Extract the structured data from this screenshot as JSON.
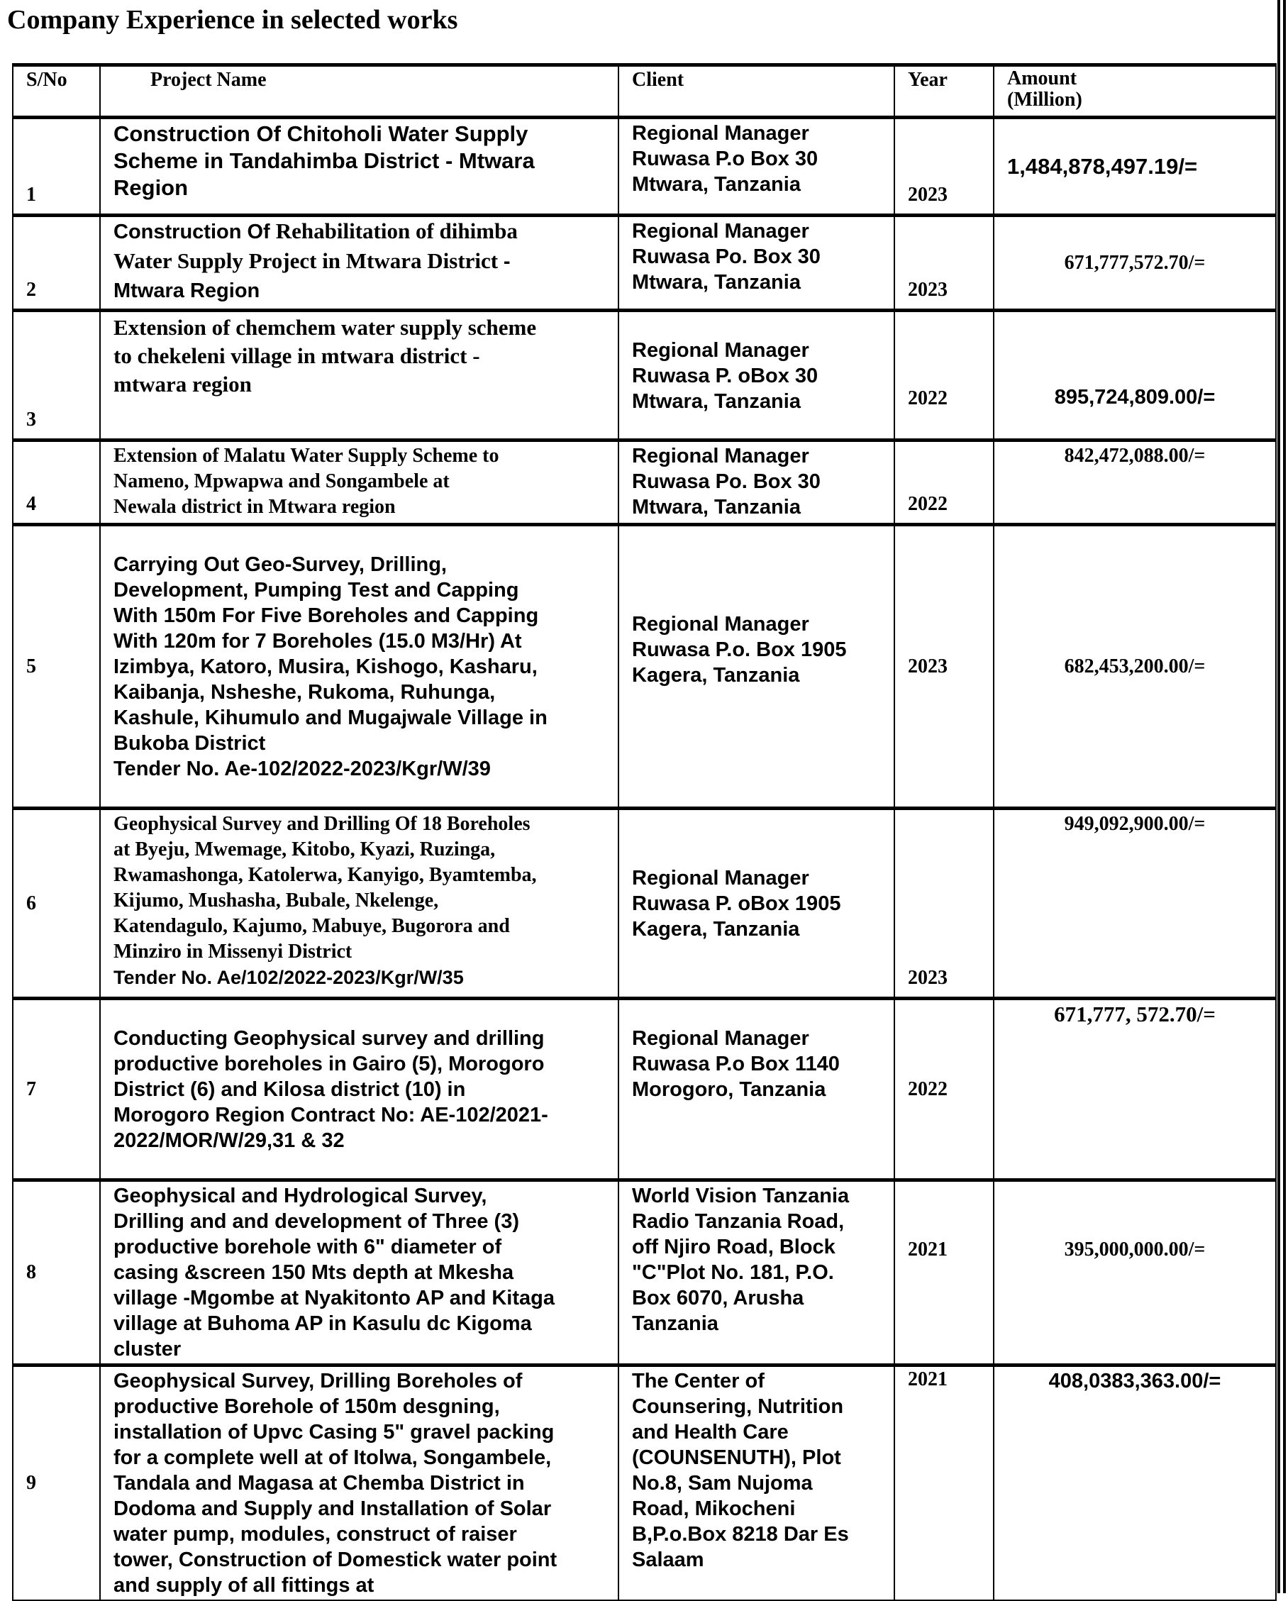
{
  "title": "Company Experience in selected works",
  "headers": {
    "sno": "S/No",
    "project": "Project Name",
    "client": "Client",
    "year": "Year",
    "amount": "Amount\n(Million)"
  },
  "rows": [
    {
      "sno": "1",
      "project": "Construction Of Chitoholi Water Supply\nScheme in Tandahimba District - Mtwara\nRegion",
      "client": "Regional Manager\nRuwasa P.o Box 30\nMtwara, Tanzania",
      "year": "2023",
      "amount": "1,484,878,497.19/="
    },
    {
      "sno": "2",
      "project_a": "Construction Of ",
      "project_b": "Rehabilitation of dihimba\nWater Supply Project in Mtwara District ",
      "project_c": "-\nMtwara Region",
      "client": "Regional Manager\nRuwasa Po. Box 30\nMtwara, Tanzania",
      "year": "2023",
      "amount": "671,777,572.70/="
    },
    {
      "sno": "3",
      "project": "Extension of chemchem water supply scheme\nto chekeleni village in mtwara district -\nmtwara region",
      "client": "Regional Manager\nRuwasa P. oBox 30\nMtwara, Tanzania",
      "year": "2022",
      "amount": "895,724,809.00/="
    },
    {
      "sno": "4",
      "project": "Extension of   Malatu Water Supply Scheme to\nNameno, Mpwapwa and Songambele at\nNewala district in Mtwara region",
      "client": "Regional Manager\nRuwasa Po. Box 30\nMtwara, Tanzania",
      "year": "2022",
      "amount": "842,472,088.00/="
    },
    {
      "sno": "5",
      "project": "Carrying Out Geo-Survey, Drilling,\nDevelopment, Pumping Test and Capping\nWith 150m For Five Boreholes and Capping\nWith 120m for 7 Boreholes (15.0 M3/Hr) At\nIzimbya, Katoro, Musira, Kishogo, Kasharu,\nKaibanja, Nsheshe, Rukoma, Ruhunga,\nKashule, Kihumulo and Mugajwale Village in\nBukoba District\nTender No. Ae-102/2022-2023/Kgr/W/39",
      "client": "Regional Manager\nRuwasa P.o. Box 1905\nKagera, Tanzania",
      "year": "2023",
      "amount": "682,453,200.00/="
    },
    {
      "sno": "6",
      "project": "Geophysical Survey and Drilling Of 18 Boreholes\nat Byeju, Mwemage, Kitobo, Kyazi, Ruzinga,\nRwamashonga, Katolerwa, Kanyigo, Byamtemba,\nKijumo, Mushasha, Bubale, Nkelenge,\nKatendagulo, Kajumo, Mabuye, Bugorora and\nMinziro in Missenyi District",
      "tender": "Tender No. Ae/102/2022-2023/Kgr/W/35",
      "client": "Regional Manager\nRuwasa P. oBox 1905\nKagera, Tanzania",
      "year": "2023",
      "amount": "949,092,900.00/="
    },
    {
      "sno": "7",
      "project": "Conducting Geophysical survey and drilling\nproductive boreholes in Gairo (5), Morogoro\nDistrict (6) and Kilosa district (10) in\nMorogoro Region Contract No: AE-102/2021-\n2022/MOR/W/29,31 & 32",
      "client": "Regional Manager\nRuwasa P.o Box 1140\nMorogoro, Tanzania",
      "year": "2022",
      "amount": "671,777, 572.70/="
    },
    {
      "sno": "8",
      "project": "Geophysical and Hydrological Survey,\nDrilling and and development of Three (3)\nproductive borehole with 6\" diameter of\ncasing &screen 150 Mts depth at Mkesha\nvillage -Mgombe at Nyakitonto AP and Kitaga\nvillage at Buhoma AP in Kasulu dc Kigoma\ncluster",
      "client": "World Vision Tanzania\nRadio Tanzania Road,\noff Njiro Road, Block\n\"C\"Plot No. 181, P.O.\nBox 6070, Arusha\nTanzania",
      "year": "2021",
      "amount": "395,000,000.00/="
    },
    {
      "sno": "9",
      "project": "Geophysical Survey, Drilling Boreholes of\nproductive Borehole of 150m desgning,\ninstallation of Upvc Casing 5\" gravel packing\nfor a complete well at of Itolwa, Songambele,\nTandala and Magasa at Chemba District in\nDodoma and Supply and Installation of Solar\nwater pump, modules, construct of raiser\ntower, Construction of Domestick water point\nand supply of all fittings at",
      "client": "The Center of\nCounsering, Nutrition\nand Health Care\n(COUNSENUTH), Plot\nNo.8, Sam Nujoma\nRoad, Mikocheni\nB,P.o.Box 8218 Dar Es\nSalaam",
      "year": "2021",
      "amount": "408,0383,363.00/="
    }
  ]
}
